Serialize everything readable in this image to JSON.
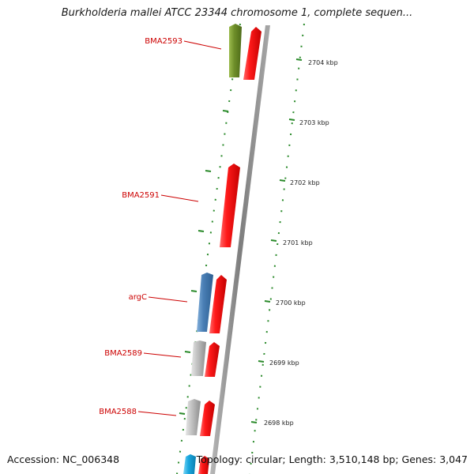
{
  "title": "Burkholderia mallei ATCC 23344 chromosome 1, complete sequen...",
  "footer": {
    "accession": "Accession: NC_006348",
    "summary": "Topology: circular; Length: 3,510,148 bp; Genes: 3,047"
  },
  "ticks": [
    "2704 kbp",
    "2703 kbp",
    "2702 kbp",
    "2701 kbp",
    "2700 kbp",
    "2699 kbp",
    "2698 kbp"
  ],
  "genes": [
    {
      "label": "BMA2593",
      "color": "#6f8f2a"
    },
    {
      "label": "BMA2591",
      "color": "#ee0000"
    },
    {
      "label": "argC",
      "color": "#4a7fb5"
    },
    {
      "label": "BMA2589",
      "color": "#b0b0b0"
    },
    {
      "label": "BMA2588",
      "color": "#b0b0b0"
    }
  ],
  "colors": {
    "label": "#cc0000",
    "backbone": "#8c8c8c",
    "ruler": "#2a8a2a",
    "arrow": "#ee0000",
    "cyan": "#1aa8e0"
  }
}
